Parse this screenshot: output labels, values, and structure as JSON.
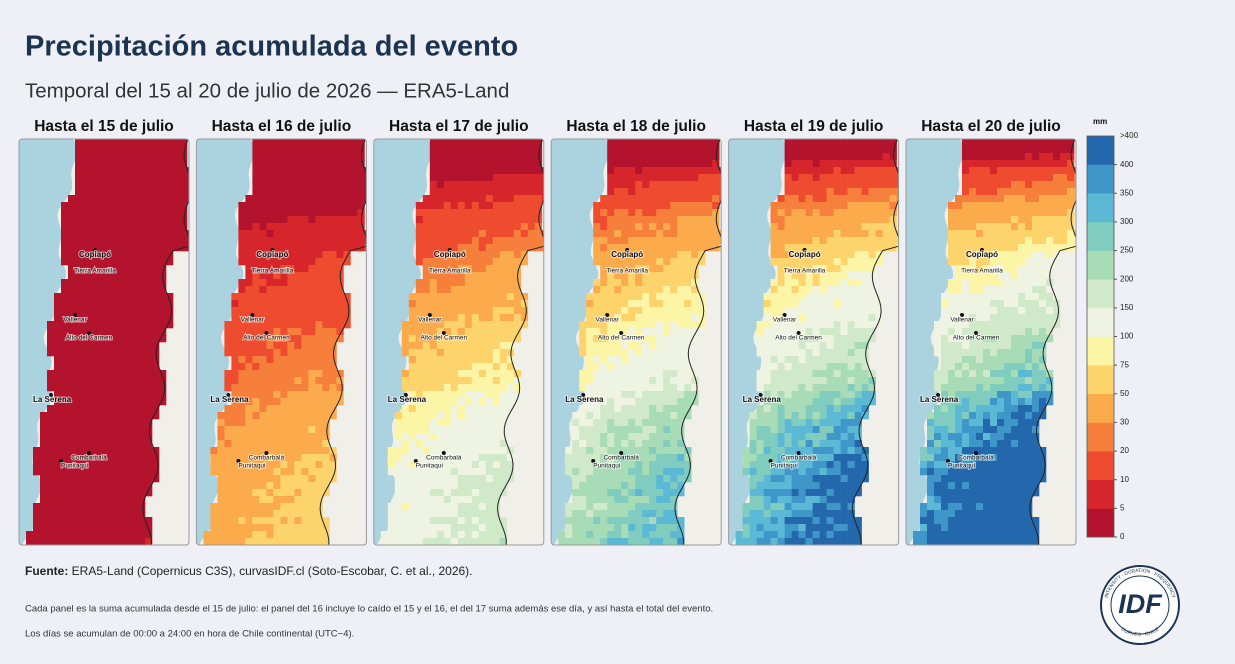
{
  "header": {
    "title": "Precipitación acumulada del evento",
    "subtitle": "Temporal del 15 al 20 de julio de 2026 — ERA5-Land"
  },
  "panels": [
    {
      "title": "Hasta el 15 de julio"
    },
    {
      "title": "Hasta el 16 de julio"
    },
    {
      "title": "Hasta el 17 de julio"
    },
    {
      "title": "Hasta el 18 de julio"
    },
    {
      "title": "Hasta el 19 de julio"
    },
    {
      "title": "Hasta el 20 de julio"
    }
  ],
  "cities": [
    {
      "name": "Copiapó",
      "bold": true
    },
    {
      "name": "Tierra Amarilla",
      "bold": false
    },
    {
      "name": "Vallenar",
      "bold": false
    },
    {
      "name": "Alto del Carmen",
      "bold": false
    },
    {
      "name": "La Serena",
      "bold": true
    },
    {
      "name": "Combarbalá",
      "bold": false
    },
    {
      "name": "Punitaqui",
      "bold": false
    }
  ],
  "colorbar": {
    "unit": "mm",
    "ticks": [
      0,
      5,
      10,
      20,
      30,
      50,
      75,
      100,
      150,
      200,
      250,
      300,
      350,
      400
    ],
    "top_label": ">400",
    "colors": [
      "#b3132c",
      "#d7262b",
      "#ee4b2f",
      "#f6803b",
      "#fbab4c",
      "#fdd46b",
      "#fdf5a6",
      "#eef4e1",
      "#cfe9c9",
      "#a8dcb7",
      "#80cdbf",
      "#5cb9d6",
      "#3f97c9",
      "#2368ad"
    ]
  },
  "footer": {
    "source_label": "Fuente:",
    "source_text": " ERA5-Land (Copernicus C3S), curvasIDF.cl (Soto-Escobar, C. et al., 2026).",
    "note_1": "Cada panel es la suma acumulada desde el 15 de julio: el panel del 16 incluye lo caído el 15 y el 16, el del 17 suma además ese día, y así hasta el total del evento.",
    "note_2": "Los días se acumulan de 00:00 a 24:00 en hora de Chile continental (UTC−4)."
  },
  "logo": {
    "text": "IDF",
    "ring_top": "INTENSITY · DURATION · FREQUENCY",
    "ring_bottom": "CURVES · CHILE"
  }
}
